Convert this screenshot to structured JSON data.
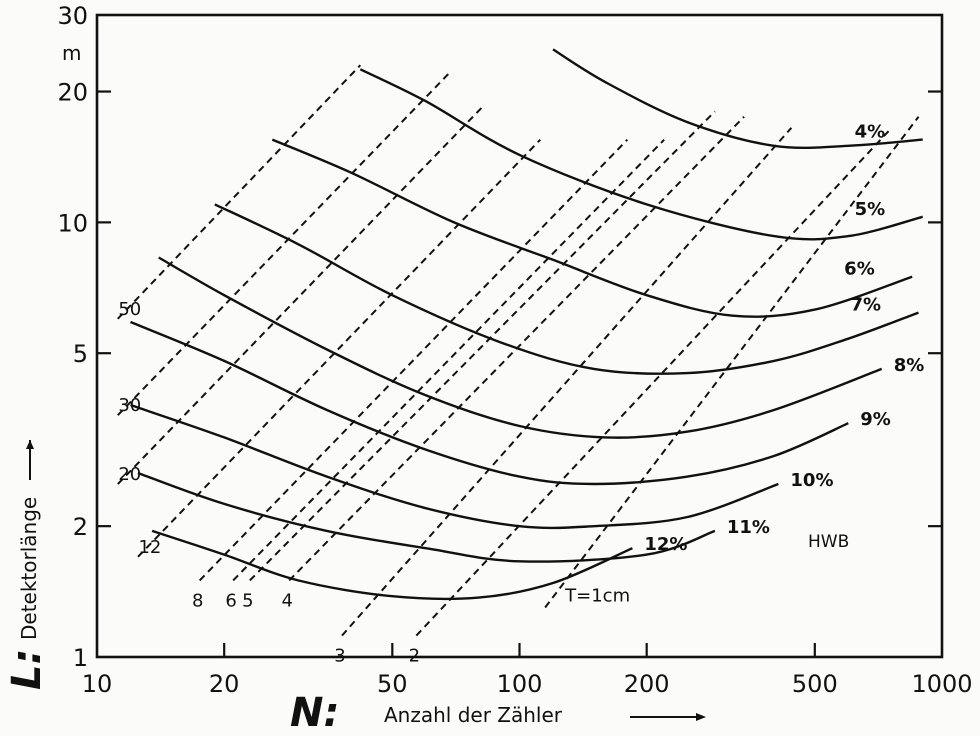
{
  "chart_data": {
    "type": "line",
    "x_scale": "log",
    "y_scale": "log",
    "xlim": [
      10,
      1000
    ],
    "ylim": [
      1,
      30
    ],
    "x_ticks": [
      10,
      20,
      50,
      100,
      200,
      500,
      1000
    ],
    "x_tick_labels": [
      "10",
      "20",
      "50",
      "100",
      "200",
      "500",
      "1000"
    ],
    "y_ticks": [
      1,
      2,
      5,
      10,
      20,
      30
    ],
    "y_tick_labels": [
      "1",
      "2",
      "5",
      "10",
      "20",
      "30"
    ],
    "y_unit": "m",
    "ylabel_symbol": "L:",
    "ylabel": "Detektorlänge",
    "xlabel_symbol": "N:",
    "xlabel": "Anzahl der Zähler",
    "note": "HWB",
    "grid": false,
    "series": [
      {
        "name": "4%",
        "x": [
          120,
          160,
          250,
          400,
          600,
          900
        ],
        "y": [
          25,
          21,
          17,
          15,
          15,
          15.5
        ]
      },
      {
        "name": "5%",
        "x": [
          42,
          60,
          100,
          200,
          400,
          600,
          900
        ],
        "y": [
          22.5,
          19,
          14.3,
          11,
          9.3,
          9.3,
          10.3
        ]
      },
      {
        "name": "6%",
        "x": [
          26,
          40,
          70,
          120,
          200,
          320,
          500,
          850
        ],
        "y": [
          15.5,
          13,
          10,
          8.2,
          6.8,
          6.1,
          6.3,
          7.5
        ]
      },
      {
        "name": "7%",
        "x": [
          19,
          30,
          50,
          90,
          150,
          250,
          400,
          600,
          880
        ],
        "y": [
          11,
          8.9,
          6.8,
          5.3,
          4.6,
          4.5,
          4.8,
          5.4,
          6.2
        ]
      },
      {
        "name": "8%",
        "x": [
          14,
          20,
          35,
          60,
          100,
          160,
          250,
          400,
          720
        ],
        "y": [
          8.3,
          6.8,
          5.1,
          4,
          3.4,
          3.2,
          3.3,
          3.7,
          4.6
        ]
      },
      {
        "name": "9%",
        "x": [
          12,
          20,
          35,
          60,
          100,
          150,
          250,
          400,
          600
        ],
        "y": [
          5.9,
          4.8,
          3.7,
          3,
          2.6,
          2.5,
          2.6,
          2.9,
          3.45
        ]
      },
      {
        "name": "10%",
        "x": [
          12,
          20,
          35,
          60,
          100,
          150,
          250,
          410
        ],
        "y": [
          3.8,
          3.2,
          2.6,
          2.2,
          2.0,
          2.0,
          2.1,
          2.5
        ]
      },
      {
        "name": "11%",
        "x": [
          12.5,
          20,
          35,
          60,
          100,
          200,
          290
        ],
        "y": [
          2.65,
          2.25,
          1.95,
          1.78,
          1.66,
          1.72,
          1.95
        ]
      },
      {
        "name": "12%",
        "x": [
          13.5,
          20,
          30,
          50,
          80,
          120,
          185
        ],
        "y": [
          1.95,
          1.72,
          1.5,
          1.38,
          1.37,
          1.48,
          1.78
        ]
      }
    ],
    "diagonals": [
      {
        "label": "50",
        "x": [
          11.2,
          42
        ],
        "y": [
          6,
          23
        ]
      },
      {
        "label": "30",
        "x": [
          11.2,
          68
        ],
        "y": [
          3.6,
          22
        ]
      },
      {
        "label": "20",
        "x": [
          11.2,
          82
        ],
        "y": [
          2.5,
          18.5
        ]
      },
      {
        "label": "12",
        "x": [
          12.5,
          112
        ],
        "y": [
          1.7,
          15.5
        ]
      },
      {
        "label": "8",
        "x": [
          17.5,
          180
        ],
        "y": [
          1.5,
          15.5
        ]
      },
      {
        "label": "6",
        "x": [
          21,
          220
        ],
        "y": [
          1.5,
          15.5
        ]
      },
      {
        "label": "5",
        "x": [
          23,
          290
        ],
        "y": [
          1.5,
          18
        ]
      },
      {
        "label": "4",
        "x": [
          28.5,
          340
        ],
        "y": [
          1.5,
          17.5
        ]
      },
      {
        "label": "3",
        "x": [
          38,
          440
        ],
        "y": [
          1.12,
          16.5
        ]
      },
      {
        "label": "2",
        "x": [
          57,
          760
        ],
        "y": [
          1.12,
          16.5
        ]
      },
      {
        "label": "T=1cm",
        "x": [
          115,
          880
        ],
        "y": [
          1.3,
          17.5
        ]
      }
    ]
  }
}
